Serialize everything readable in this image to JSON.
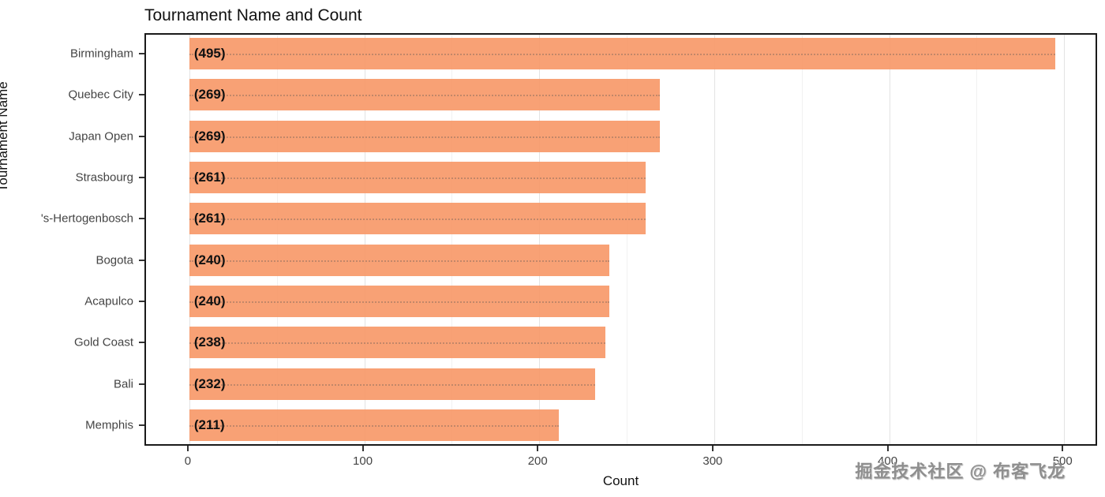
{
  "watermark": "掘金技术社区 @ 布客飞龙",
  "chart_data": {
    "type": "bar",
    "orientation": "horizontal",
    "title": "Tournament Name and Count",
    "xlabel": "Count",
    "ylabel": "Tournament Name",
    "categories": [
      "Birmingham",
      "Quebec City",
      "Japan Open",
      "Strasbourg",
      "'s-Hertogenbosch",
      "Bogota",
      "Acapulco",
      "Gold Coast",
      "Bali",
      "Memphis"
    ],
    "values": [
      495,
      269,
      269,
      261,
      261,
      240,
      240,
      238,
      232,
      211
    ],
    "bar_labels": [
      "(495)",
      "(269)",
      "(269)",
      "(261)",
      "(261)",
      "(240)",
      "(240)",
      "(238)",
      "(232)",
      "(211)"
    ],
    "xlim": [
      -24.75,
      519.75
    ],
    "xticks": [
      0,
      100,
      200,
      300,
      400,
      500
    ],
    "xminor": [
      50,
      150,
      250,
      350,
      450
    ],
    "bar_color": "#F89C6E",
    "grid": true,
    "legend": "none"
  }
}
